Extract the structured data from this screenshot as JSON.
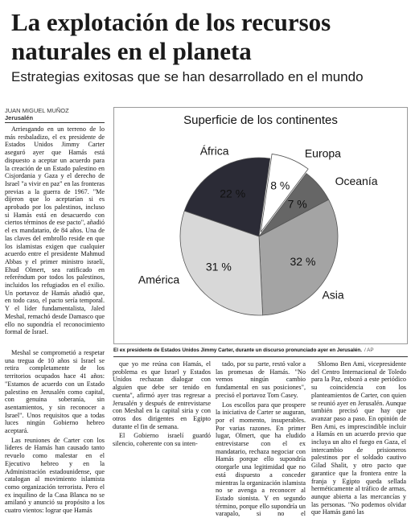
{
  "article": {
    "headline": "La explotación de los recursos naturales en el planeta",
    "subheadline": "Estrategias exitosas que se han desarrollado en el mundo",
    "author": "JUAN MIGUEL MUÑOZ",
    "city": "Jerusalén"
  },
  "columns": {
    "col1a": [
      "Arriesgando en un terreno de lo más resbaladizo, el ex presidente de Estados Unidos Jimmy Carter aseguró ayer que Hamás está dispuesto a aceptar un acuerdo para la creación de un Estado palestino en Cisjordania y Gaza y el derecho de Israel \"a vivir en paz\" en las fronteras previas a la guerra de 1967. \"Me dijeron que lo aceptarían si es aprobado por los palestinos, incluso si Hamás está en desacuerdo con ciertos términos de ese pacto\", añadió el ex mandatario, de 84 años. Una de las claves del embrollo reside en que los islamistas exigen que cualquier acuerdo entre el presidente Mahmud Abbas y el primer ministro israelí, Ehud Olmert, sea ratificado en referéndum por todos los palestinos, incluidos los refugiados en el exilio. Un portavoz de Hamás añadió que, en todo caso, el pacto sería temporal. Y el líder fundamentalista, Jaled Meshal, remachó desde Damasco que ello no supondría el reconocimiento formal de Israel."
    ],
    "col1b": [
      "Meshal se comprometió a respetar una tregua de 10 años si Israel se retira completamente de los territorios ocupados hace 41 años: \"Estamos de acuerdo con un Estado palestino en Jerusalén como capital, con genuina soberanía, sin asentamientos, y sin reconocer a Israel\". Unos requisitos que a todas luces ningún Gobierno hebreo aceptará.",
      "Las reuniones de Carter con los líderes de Hamás han causado tanto revuelo como malestar en el Ejecutivo hebreo y en la Administración estadounidense, que catalogan al movimiento islamista como organización terrorista. Pero el ex inquilino de la Casa Blanca no se amilanó y anunció su propósito a los cuatro vientos: lograr que Hamás"
    ],
    "col2": [
      "que yo me reúna con Hamás, el problema es que Israel y Estados Unidos rechazan dialogar con alguien que debe ser tenido en cuenta\", afirmó ayer tras regresar a Jerusalén y después de entrevistarse con Meshal en la capital siria y con otros dos dirigentes en Egipto durante el fin de semana.",
      "El Gobierno israelí guardó silencio, coherente con su inten-"
    ],
    "col3": [
      "tado, por su parte, restó valor a las promesas de Hamás. \"No vemos ningún cambio fundamental en sus posiciones\", precisó el portavoz Tom Casey.",
      "Los escollos para que prospere la iniciativa de Carter se auguran, por el momento, insuperables. Por varias razones. En primer lugar, Olmert, que ha eludido entrevistarse con el ex mandatario, rechaza negociar con Hamás porque ello supondría otorgarle una legitimidad que no está dispuesto a conceder mientras la organización islamista no se avenga a reconocer al Estado sionista. Y en segundo término, porque ello supondría un varapalo, si no el descarrilamiento, a las"
    ],
    "col4": [
      "Shlomo Ben Ami, vicepresidente del Centro Internacional de Toledo para la Paz, esbozó a este periódico su coincidencia con los planteamientos de Carter, con quien se reunió ayer en Jerusalén. Aunque también precisó que hay que avanzar paso a paso. En opinión de Ben Ami, es imprescindible incluir a Hamás en un acuerdo previo que incluya un alto el fuego en Gaza, el intercambio de prisioneros palestinos por el soldado cautivo Gilad Shalit, y otro pacto que garantice que la frontera entre la franja y Egipto queda sellada herméticamente al tráfico de armas, aunque abierta a las mercancías y las personas. \"No podemos olvidar que Hamás ganó las"
    ]
  },
  "caption": {
    "text": "El ex presidente de Estados Unidos Jimmy Carter, durante un discurso pronunciado ayer en Jerusalén.",
    "credit": "/ AP"
  },
  "chart_data": {
    "type": "pie",
    "title": "Superficie de los continentes",
    "slices": [
      {
        "label": "África",
        "value": 22,
        "value_label": "22 %",
        "color": "#2b2b36"
      },
      {
        "label": "Europa",
        "value": 8,
        "value_label": "8 %",
        "color": "#ffffff"
      },
      {
        "label": "Oceanía",
        "value": 7,
        "value_label": "7 %",
        "color": "#666666"
      },
      {
        "label": "Asia",
        "value": 32,
        "value_label": "32 %",
        "color": "#a4a4a4"
      },
      {
        "label": "América",
        "value": 31,
        "value_label": "31 %",
        "color": "#d8d8d8"
      }
    ]
  }
}
